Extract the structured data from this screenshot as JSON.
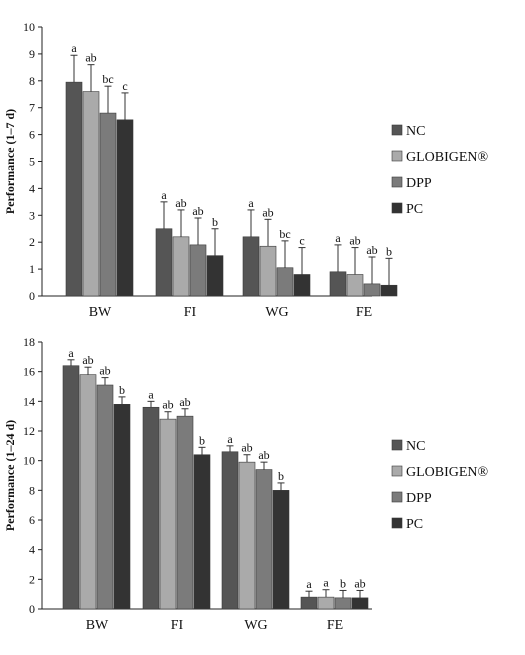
{
  "chart_data": [
    {
      "type": "bar",
      "ylabel": "Performance  (1–7 d)",
      "ylim": [
        0,
        10
      ],
      "yticks": [
        0,
        1,
        2,
        3,
        4,
        5,
        6,
        7,
        8,
        9,
        10
      ],
      "categories": [
        "BW",
        "FI",
        "WG",
        "FE"
      ],
      "series": [
        {
          "name": "NC",
          "color": "#555555",
          "values": [
            7.95,
            2.5,
            2.2,
            0.9
          ],
          "errors": [
            1.0,
            1.0,
            1.0,
            1.0
          ],
          "labels": [
            "a",
            "a",
            "a",
            "a"
          ]
        },
        {
          "name": "GLOBIGEN®",
          "color": "#aaaaaa",
          "values": [
            7.6,
            2.2,
            1.85,
            0.8
          ],
          "errors": [
            1.0,
            1.0,
            1.0,
            1.0
          ],
          "labels": [
            "ab",
            "ab",
            "ab",
            "ab"
          ]
        },
        {
          "name": "DPP",
          "color": "#7b7b7b",
          "values": [
            6.8,
            1.9,
            1.05,
            0.45
          ],
          "errors": [
            1.0,
            1.0,
            1.0,
            1.0
          ],
          "labels": [
            "bc",
            "ab",
            "bc",
            "ab"
          ]
        },
        {
          "name": "PC",
          "color": "#333333",
          "values": [
            6.55,
            1.5,
            0.8,
            0.4
          ],
          "errors": [
            1.0,
            1.0,
            1.0,
            1.0
          ],
          "labels": [
            "c",
            "b",
            "c",
            "b"
          ]
        }
      ],
      "legend": "right"
    },
    {
      "type": "bar",
      "ylabel": "Performance  (1–24 d)",
      "ylim": [
        0,
        18
      ],
      "yticks": [
        0,
        2,
        4,
        6,
        8,
        10,
        12,
        14,
        16,
        18
      ],
      "categories": [
        "BW",
        "FI",
        "WG",
        "FE"
      ],
      "series": [
        {
          "name": "NC",
          "color": "#555555",
          "values": [
            16.4,
            13.6,
            10.6,
            0.8
          ],
          "errors": [
            0.4,
            0.4,
            0.4,
            0.4
          ],
          "labels": [
            "a",
            "a",
            "a",
            "a"
          ]
        },
        {
          "name": "GLOBIGEN®",
          "color": "#aaaaaa",
          "values": [
            15.8,
            12.8,
            9.9,
            0.8
          ],
          "errors": [
            0.5,
            0.5,
            0.5,
            0.5
          ],
          "labels": [
            "ab",
            "ab",
            "ab",
            "a"
          ]
        },
        {
          "name": "DPP",
          "color": "#7b7b7b",
          "values": [
            15.1,
            13.0,
            9.4,
            0.75
          ],
          "errors": [
            0.5,
            0.5,
            0.5,
            0.5
          ],
          "labels": [
            "ab",
            "ab",
            "ab",
            "b"
          ]
        },
        {
          "name": "PC",
          "color": "#333333",
          "values": [
            13.8,
            10.4,
            8.0,
            0.75
          ],
          "errors": [
            0.5,
            0.5,
            0.5,
            0.5
          ],
          "labels": [
            "b",
            "b",
            "b",
            "ab"
          ]
        }
      ],
      "legend": "right"
    }
  ]
}
